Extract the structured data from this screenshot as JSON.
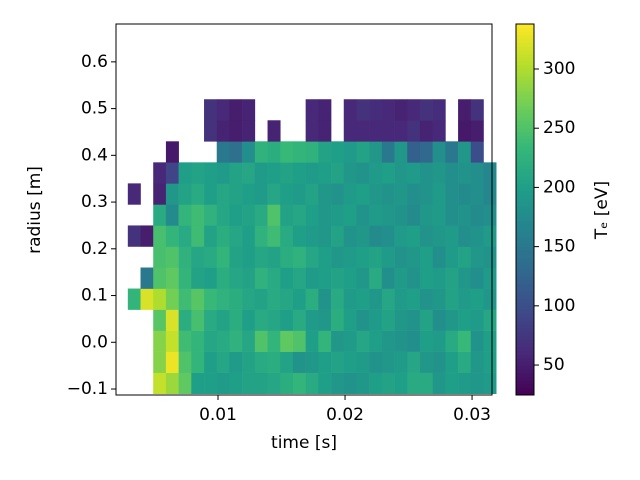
{
  "chart_data": {
    "type": "heatmap",
    "xlabel": "time [s]",
    "ylabel": "radius [m]",
    "colorbar_label": "Tₑ [eV]",
    "colormap": "viridis",
    "xlim": [
      0.00197,
      0.03157
    ],
    "ylim": [
      -0.1128,
      0.681
    ],
    "xticks": [
      0.01,
      0.02,
      0.03
    ],
    "yticks": [
      {
        "value": -0.1,
        "label": "−0.1"
      },
      {
        "value": 0,
        "label": "0.0"
      },
      0.1,
      0.2,
      0.3,
      0.4,
      0.5,
      0.6
    ],
    "clim": [
      24.7,
      338
    ],
    "cticks": [
      50,
      100,
      150,
      200,
      250,
      300
    ],
    "x_edges": [
      0.0029,
      0.0039,
      0.0049,
      0.0059,
      0.0069,
      0.0079,
      0.0089,
      0.0099,
      0.0109,
      0.0119,
      0.0129,
      0.0139,
      0.0149,
      0.0159,
      0.0169,
      0.0179,
      0.0189,
      0.0199,
      0.0209,
      0.0219,
      0.0229,
      0.0239,
      0.0249,
      0.0259,
      0.0269,
      0.0279,
      0.0289,
      0.0299,
      0.0309,
      0.0319
    ],
    "y_edges": [
      -0.11,
      -0.065,
      -0.02,
      0.025,
      0.07,
      0.115,
      0.16,
      0.205,
      0.25,
      0.295,
      0.34,
      0.385,
      0.43,
      0.475,
      0.52
    ],
    "values": [
      [
        null,
        null,
        310,
        290,
        260,
        200,
        200,
        195,
        200,
        205,
        205,
        210,
        220,
        230,
        215,
        200,
        190,
        185,
        190,
        200,
        205,
        200,
        215,
        215,
        190,
        200,
        195,
        190,
        195
      ],
      [
        null,
        null,
        280,
        330,
        250,
        230,
        200,
        210,
        195,
        205,
        215,
        220,
        205,
        185,
        190,
        200,
        205,
        200,
        195,
        185,
        190,
        195,
        210,
        190,
        185,
        200,
        215,
        190,
        200
      ],
      [
        null,
        null,
        280,
        310,
        240,
        230,
        210,
        215,
        225,
        210,
        250,
        230,
        260,
        250,
        200,
        230,
        190,
        195,
        210,
        200,
        190,
        185,
        180,
        200,
        195,
        215,
        235,
        185,
        200
      ],
      [
        null,
        null,
        255,
        320,
        220,
        245,
        215,
        205,
        220,
        200,
        215,
        210,
        200,
        215,
        195,
        190,
        220,
        200,
        185,
        195,
        205,
        190,
        185,
        205,
        180,
        190,
        200,
        195,
        210
      ],
      [
        230,
        320,
        300,
        270,
        240,
        255,
        235,
        225,
        220,
        210,
        205,
        215,
        210,
        200,
        220,
        185,
        215,
        195,
        200,
        190,
        210,
        195,
        200,
        185,
        190,
        205,
        195,
        200,
        190
      ],
      [
        null,
        150,
        250,
        260,
        230,
        205,
        200,
        220,
        210,
        205,
        225,
        215,
        200,
        210,
        195,
        200,
        205,
        200,
        190,
        215,
        180,
        195,
        185,
        200,
        195,
        205,
        190,
        180,
        195
      ],
      [
        null,
        null,
        245,
        250,
        225,
        210,
        215,
        230,
        205,
        200,
        210,
        205,
        220,
        225,
        210,
        200,
        190,
        195,
        200,
        205,
        195,
        185,
        190,
        200,
        180,
        195,
        205,
        190,
        185
      ],
      [
        70,
        50,
        245,
        230,
        215,
        240,
        205,
        220,
        210,
        200,
        225,
        240,
        215,
        200,
        195,
        190,
        205,
        185,
        190,
        175,
        180,
        195,
        200,
        185,
        190,
        195,
        180,
        185,
        195
      ],
      [
        null,
        null,
        215,
        175,
        230,
        240,
        225,
        210,
        200,
        205,
        215,
        250,
        205,
        210,
        200,
        190,
        195,
        200,
        185,
        195,
        190,
        185,
        175,
        190,
        195,
        180,
        185,
        175,
        180
      ],
      [
        60,
        null,
        55,
        190,
        205,
        215,
        200,
        210,
        205,
        200,
        195,
        210,
        200,
        195,
        205,
        190,
        185,
        195,
        200,
        190,
        185,
        190,
        180,
        185,
        195,
        180,
        175,
        180,
        170
      ],
      [
        null,
        null,
        60,
        90,
        200,
        205,
        200,
        195,
        205,
        210,
        195,
        200,
        205,
        200,
        195,
        200,
        205,
        190,
        185,
        195,
        200,
        190,
        195,
        185,
        190,
        180,
        185,
        180,
        170
      ],
      [
        null,
        null,
        null,
        45,
        null,
        null,
        null,
        150,
        140,
        180,
        225,
        220,
        235,
        230,
        225,
        205,
        200,
        195,
        205,
        190,
        150,
        190,
        120,
        130,
        180,
        150,
        190,
        100,
        null
      ],
      [
        null,
        null,
        null,
        null,
        null,
        null,
        70,
        55,
        50,
        55,
        null,
        55,
        null,
        null,
        60,
        55,
        null,
        60,
        60,
        60,
        60,
        60,
        70,
        55,
        60,
        null,
        45,
        50,
        null
      ],
      [
        null,
        null,
        null,
        null,
        null,
        null,
        70,
        60,
        50,
        55,
        null,
        null,
        null,
        null,
        60,
        55,
        null,
        60,
        70,
        65,
        60,
        55,
        60,
        70,
        65,
        null,
        50,
        70,
        null
      ]
    ]
  }
}
